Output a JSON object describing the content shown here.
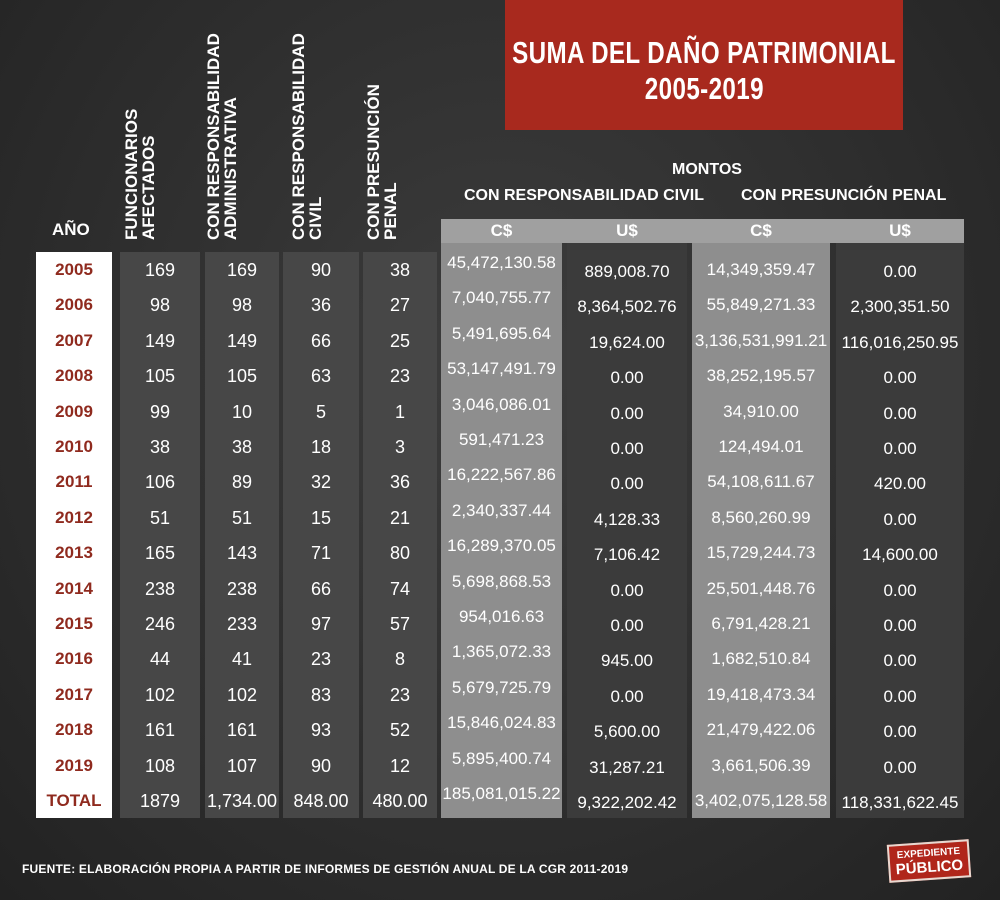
{
  "title_line1": "SUMA DEL DAÑO PATRIMONIAL",
  "title_line2": "2005-2019",
  "headers": {
    "year": "AÑO",
    "funcionarios_line1": "FUNCIONARIOS",
    "funcionarios_line2": "AFECTADOS",
    "adm_line1": "CON RESPONSABILIDAD",
    "adm_line2": "ADMINISTRATIVA",
    "civ_line1": "CON RESPONSABILIDAD",
    "civ_line2": "CIVIL",
    "pen_line1": "CON PRESUNCIÓN",
    "pen_line2": "PENAL",
    "montos": "MONTOS",
    "grupo_civil": "CON RESPONSABILIDAD CIVIL",
    "grupo_penal": "CON PRESUNCIÓN PENAL",
    "cur_civ_c": "C$",
    "cur_civ_u": "U$",
    "cur_pen_c": "C$",
    "cur_pen_u": "U$"
  },
  "footnote": "FUENTE: ELABORACIÓN PROPIA A PARTIR DE INFORMES DE GESTIÓN ANUAL DE LA CGR 2011-2019",
  "logo_line1": "EXPEDIENTE",
  "logo_line2": "PÚBLICO",
  "colors": {
    "accent_red": "#a8291e",
    "year_text": "#8f2a1e",
    "count_band": "#474747",
    "light_band": "#8e8e8e",
    "dark_band": "#3b3b3b"
  },
  "chart_data": {
    "type": "table",
    "title": "SUMA DEL DAÑO PATRIMONIAL 2005-2019",
    "columns": [
      "AÑO",
      "FUNCIONARIOS AFECTADOS",
      "CON RESPONSABILIDAD ADMINISTRATIVA",
      "CON RESPONSABILIDAD CIVIL",
      "CON PRESUNCIÓN PENAL",
      "MONTOS CON RESPONSABILIDAD CIVIL C$",
      "MONTOS CON RESPONSABILIDAD CIVIL U$",
      "MONTOS CON PRESUNCIÓN PENAL C$",
      "MONTOS CON PRESUNCIÓN PENAL U$"
    ],
    "rows": [
      [
        "2005",
        "169",
        "169",
        "90",
        "38",
        "45,472,130.58",
        "889,008.70",
        "14,349,359.47",
        "0.00"
      ],
      [
        "2006",
        "98",
        "98",
        "36",
        "27",
        "7,040,755.77",
        "8,364,502.76",
        "55,849,271.33",
        "2,300,351.50"
      ],
      [
        "2007",
        "149",
        "149",
        "66",
        "25",
        "5,491,695.64",
        "19,624.00",
        "3,136,531,991.21",
        "116,016,250.95"
      ],
      [
        "2008",
        "105",
        "105",
        "63",
        "23",
        "53,147,491.79",
        "0.00",
        "38,252,195.57",
        "0.00"
      ],
      [
        "2009",
        "99",
        "10",
        "5",
        "1",
        "3,046,086.01",
        "0.00",
        "34,910.00",
        "0.00"
      ],
      [
        "2010",
        "38",
        "38",
        "18",
        "3",
        "591,471.23",
        "0.00",
        "124,494.01",
        "0.00"
      ],
      [
        "2011",
        "106",
        "89",
        "32",
        "36",
        "16,222,567.86",
        "0.00",
        "54,108,611.67",
        "420.00"
      ],
      [
        "2012",
        "51",
        "51",
        "15",
        "21",
        "2,340,337.44",
        "4,128.33",
        "8,560,260.99",
        "0.00"
      ],
      [
        "2013",
        "165",
        "143",
        "71",
        "80",
        "16,289,370.05",
        "7,106.42",
        "15,729,244.73",
        "14,600.00"
      ],
      [
        "2014",
        "238",
        "238",
        "66",
        "74",
        "5,698,868.53",
        "0.00",
        "25,501,448.76",
        "0.00"
      ],
      [
        "2015",
        "246",
        "233",
        "97",
        "57",
        "954,016.63",
        "0.00",
        "6,791,428.21",
        "0.00"
      ],
      [
        "2016",
        "44",
        "41",
        "23",
        "8",
        "1,365,072.33",
        "945.00",
        "1,682,510.84",
        "0.00"
      ],
      [
        "2017",
        "102",
        "102",
        "83",
        "23",
        "5,679,725.79",
        "0.00",
        "19,418,473.34",
        "0.00"
      ],
      [
        "2018",
        "161",
        "161",
        "93",
        "52",
        "15,846,024.83",
        "5,600.00",
        "21,479,422.06",
        "0.00"
      ],
      [
        "2019",
        "108",
        "107",
        "90",
        "12",
        "5,895,400.74",
        "31,287.21",
        "3,661,506.39",
        "0.00"
      ],
      [
        "TOTAL",
        "1879",
        "1,734.00",
        "848.00",
        "480.00",
        "185,081,015.22",
        "9,322,202.42",
        "3,402,075,128.58",
        "118,331,622.45"
      ]
    ]
  }
}
